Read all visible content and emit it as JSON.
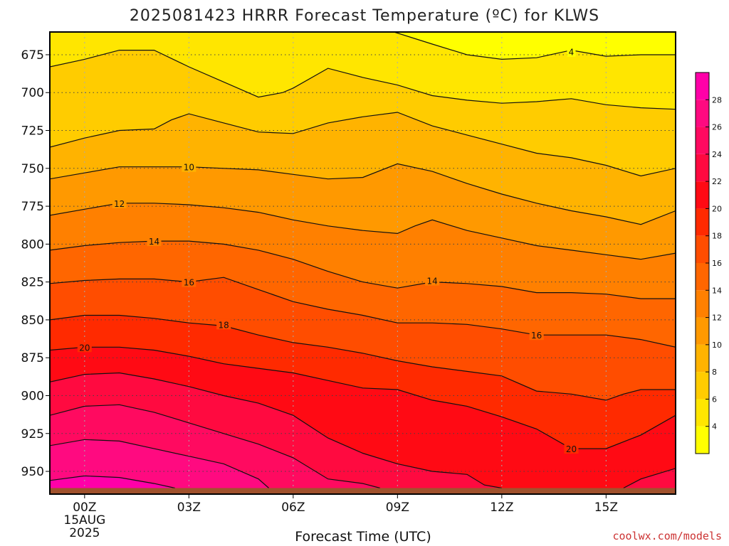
{
  "chart_data": {
    "type": "heatmap",
    "title": "2025081423 HRRR Forecast Temperature (ºC) for KLWS",
    "xlabel": "Forecast Time (UTC)",
    "ylabel": "",
    "x_hours": [
      -1,
      17
    ],
    "ylim": [
      965,
      660
    ],
    "y_scale": "pressure (hPa), surface at bottom",
    "grid": "dotted",
    "x_ticks": [
      {
        "h": 0,
        "lines": [
          "00Z",
          "15AUG",
          "2025"
        ]
      },
      {
        "h": 3,
        "lines": [
          "03Z"
        ]
      },
      {
        "h": 6,
        "lines": [
          "06Z"
        ]
      },
      {
        "h": 9,
        "lines": [
          "09Z"
        ]
      },
      {
        "h": 12,
        "lines": [
          "12Z"
        ]
      },
      {
        "h": 15,
        "lines": [
          "15Z"
        ]
      }
    ],
    "y_ticks": [
      675,
      700,
      725,
      750,
      775,
      800,
      825,
      850,
      875,
      900,
      925,
      950
    ],
    "colorbar": {
      "levels": [
        2,
        4,
        6,
        8,
        10,
        12,
        14,
        16,
        18,
        20,
        22,
        24,
        26,
        28,
        30
      ],
      "labels": [
        4,
        6,
        8,
        10,
        12,
        14,
        16,
        18,
        20,
        22,
        24,
        26,
        28
      ],
      "colors": [
        "#ffff00",
        "#ffe600",
        "#ffcc00",
        "#ffb300",
        "#ff9900",
        "#ff8000",
        "#ff6600",
        "#ff4d00",
        "#ff2a00",
        "#ff0a14",
        "#ff0a40",
        "#ff0a60",
        "#ff0a80",
        "#ff00a8"
      ]
    },
    "surface_color": "#a0522d",
    "surface_pressure": 961,
    "contours": [
      {
        "level": 4,
        "points": [
          [
            8.9,
            660
          ],
          [
            10,
            668
          ],
          [
            11,
            675
          ],
          [
            12,
            678
          ],
          [
            13,
            677
          ],
          [
            14,
            672
          ],
          [
            15,
            676
          ],
          [
            16,
            675
          ],
          [
            17,
            675
          ]
        ]
      },
      {
        "level": 6,
        "points": [
          [
            -1,
            683
          ],
          [
            0,
            678
          ],
          [
            1,
            672
          ],
          [
            2,
            672
          ],
          [
            3,
            683
          ],
          [
            4,
            693
          ],
          [
            5,
            703
          ],
          [
            5.7,
            700
          ],
          [
            6,
            697
          ],
          [
            7,
            684
          ],
          [
            8,
            690
          ],
          [
            9,
            695
          ],
          [
            10,
            702
          ],
          [
            11,
            705
          ],
          [
            12,
            707
          ],
          [
            13,
            706
          ],
          [
            14,
            704
          ],
          [
            15,
            708
          ],
          [
            16,
            710
          ],
          [
            17,
            711
          ]
        ]
      },
      {
        "level": 8,
        "points": [
          [
            -1,
            736
          ],
          [
            0,
            730
          ],
          [
            1,
            725
          ],
          [
            2,
            724
          ],
          [
            2.5,
            718
          ],
          [
            3,
            714
          ],
          [
            4,
            720
          ],
          [
            5,
            726
          ],
          [
            6,
            727
          ],
          [
            7,
            720
          ],
          [
            8,
            716
          ],
          [
            9,
            713
          ],
          [
            10,
            722
          ],
          [
            11,
            728
          ],
          [
            12,
            734
          ],
          [
            13,
            740
          ],
          [
            14,
            743
          ],
          [
            15,
            748
          ],
          [
            16,
            755
          ],
          [
            17,
            750
          ]
        ]
      },
      {
        "level": 10,
        "points": [
          [
            -1,
            757
          ],
          [
            0,
            753
          ],
          [
            1,
            749
          ],
          [
            2,
            749
          ],
          [
            3,
            749
          ],
          [
            4,
            750
          ],
          [
            5,
            751
          ],
          [
            6,
            754
          ],
          [
            7,
            757
          ],
          [
            8,
            756
          ],
          [
            9,
            747
          ],
          [
            10,
            752
          ],
          [
            11,
            760
          ],
          [
            12,
            767
          ],
          [
            13,
            773
          ],
          [
            14,
            778
          ],
          [
            15,
            782
          ],
          [
            16,
            787
          ],
          [
            17,
            778
          ]
        ]
      },
      {
        "level": 12,
        "points": [
          [
            -1,
            781
          ],
          [
            0,
            777
          ],
          [
            1,
            773
          ],
          [
            2,
            773
          ],
          [
            3,
            774
          ],
          [
            4,
            776
          ],
          [
            5,
            779
          ],
          [
            6,
            784
          ],
          [
            7,
            788
          ],
          [
            8,
            791
          ],
          [
            9,
            793
          ],
          [
            9.5,
            788
          ],
          [
            10,
            784
          ],
          [
            11,
            791
          ],
          [
            12,
            796
          ],
          [
            13,
            801
          ],
          [
            14,
            804
          ],
          [
            15,
            807
          ],
          [
            16,
            810
          ],
          [
            17,
            806
          ]
        ]
      },
      {
        "level": 14,
        "points": [
          [
            -1,
            804
          ],
          [
            0,
            801
          ],
          [
            1,
            799
          ],
          [
            2,
            798
          ],
          [
            3,
            798
          ],
          [
            4,
            800
          ],
          [
            5,
            804
          ],
          [
            6,
            810
          ],
          [
            7,
            818
          ],
          [
            8,
            825
          ],
          [
            9,
            829
          ],
          [
            10,
            825
          ],
          [
            11,
            826
          ],
          [
            12,
            828
          ],
          [
            13,
            832
          ],
          [
            14,
            832
          ],
          [
            15,
            833
          ],
          [
            16,
            836
          ],
          [
            17,
            836
          ]
        ]
      },
      {
        "level": 16,
        "points": [
          [
            -1,
            826
          ],
          [
            0,
            824
          ],
          [
            1,
            823
          ],
          [
            2,
            823
          ],
          [
            3,
            825
          ],
          [
            4,
            822
          ],
          [
            5,
            830
          ],
          [
            6,
            838
          ],
          [
            7,
            843
          ],
          [
            8,
            847
          ],
          [
            9,
            852
          ],
          [
            10,
            852
          ],
          [
            11,
            853
          ],
          [
            12,
            856
          ],
          [
            13,
            860
          ],
          [
            14,
            860
          ],
          [
            15,
            860
          ],
          [
            16,
            863
          ],
          [
            17,
            868
          ]
        ]
      },
      {
        "level": 18,
        "points": [
          [
            -1,
            850
          ],
          [
            0,
            847
          ],
          [
            1,
            847
          ],
          [
            2,
            849
          ],
          [
            3,
            852
          ],
          [
            4,
            854
          ],
          [
            5,
            860
          ],
          [
            6,
            865
          ],
          [
            7,
            868
          ],
          [
            8,
            872
          ],
          [
            9,
            877
          ],
          [
            10,
            881
          ],
          [
            11,
            884
          ],
          [
            12,
            887
          ],
          [
            13,
            897
          ],
          [
            14,
            899
          ],
          [
            15,
            903
          ],
          [
            15.5,
            899
          ],
          [
            16,
            896
          ],
          [
            17,
            896
          ]
        ]
      },
      {
        "level": 20,
        "points": [
          [
            -1,
            870
          ],
          [
            0,
            868
          ],
          [
            1,
            868
          ],
          [
            2,
            870
          ],
          [
            3,
            874
          ],
          [
            4,
            879
          ],
          [
            5,
            882
          ],
          [
            6,
            885
          ],
          [
            7,
            890
          ],
          [
            8,
            895
          ],
          [
            9,
            896
          ],
          [
            10,
            903
          ],
          [
            11,
            907
          ],
          [
            12,
            914
          ],
          [
            13,
            922
          ],
          [
            14,
            935
          ],
          [
            15,
            935
          ],
          [
            16,
            926
          ],
          [
            17,
            913
          ]
        ]
      },
      {
        "level": 22,
        "points": [
          [
            -1,
            891
          ],
          [
            0,
            886
          ],
          [
            1,
            885
          ],
          [
            2,
            889
          ],
          [
            3,
            894
          ],
          [
            4,
            900
          ],
          [
            5,
            905
          ],
          [
            6,
            913
          ],
          [
            7,
            928
          ],
          [
            8,
            938
          ],
          [
            9,
            945
          ],
          [
            10,
            950
          ],
          [
            11,
            952
          ],
          [
            11.5,
            959
          ],
          [
            12,
            961
          ]
        ]
      },
      {
        "level": 24,
        "points": [
          [
            -1,
            913
          ],
          [
            0,
            907
          ],
          [
            1,
            906
          ],
          [
            2,
            911
          ],
          [
            3,
            918
          ],
          [
            4,
            925
          ],
          [
            5,
            932
          ],
          [
            6,
            941
          ],
          [
            7,
            955
          ],
          [
            8,
            958
          ],
          [
            8.5,
            961
          ]
        ]
      },
      {
        "level": 26,
        "points": [
          [
            -1,
            933
          ],
          [
            0,
            929
          ],
          [
            1,
            930
          ],
          [
            2,
            935
          ],
          [
            3,
            940
          ],
          [
            4,
            945
          ],
          [
            5,
            955
          ],
          [
            5.3,
            961
          ]
        ]
      },
      {
        "level": 28,
        "points": [
          [
            -1,
            956
          ],
          [
            0,
            953
          ],
          [
            1,
            954
          ],
          [
            2,
            958
          ],
          [
            2.6,
            961
          ]
        ]
      },
      {
        "level": 22,
        "points": [
          [
            15.5,
            961
          ],
          [
            16,
            955
          ],
          [
            17,
            948
          ]
        ]
      }
    ],
    "contour_labels": [
      {
        "text": "4",
        "h": 14.0,
        "p": 673
      },
      {
        "text": "10",
        "h": 3.0,
        "p": 749
      },
      {
        "text": "12",
        "h": 1.0,
        "p": 773
      },
      {
        "text": "14",
        "h": 2.0,
        "p": 798
      },
      {
        "text": "16",
        "h": 3.0,
        "p": 825
      },
      {
        "text": "14",
        "h": 10.0,
        "p": 824
      },
      {
        "text": "18",
        "h": 4.0,
        "p": 853
      },
      {
        "text": "16",
        "h": 13.0,
        "p": 860
      },
      {
        "text": "20",
        "h": 0.0,
        "p": 868
      },
      {
        "text": "20",
        "h": 14.0,
        "p": 935
      }
    ]
  },
  "credit": "coolwx.com/models"
}
